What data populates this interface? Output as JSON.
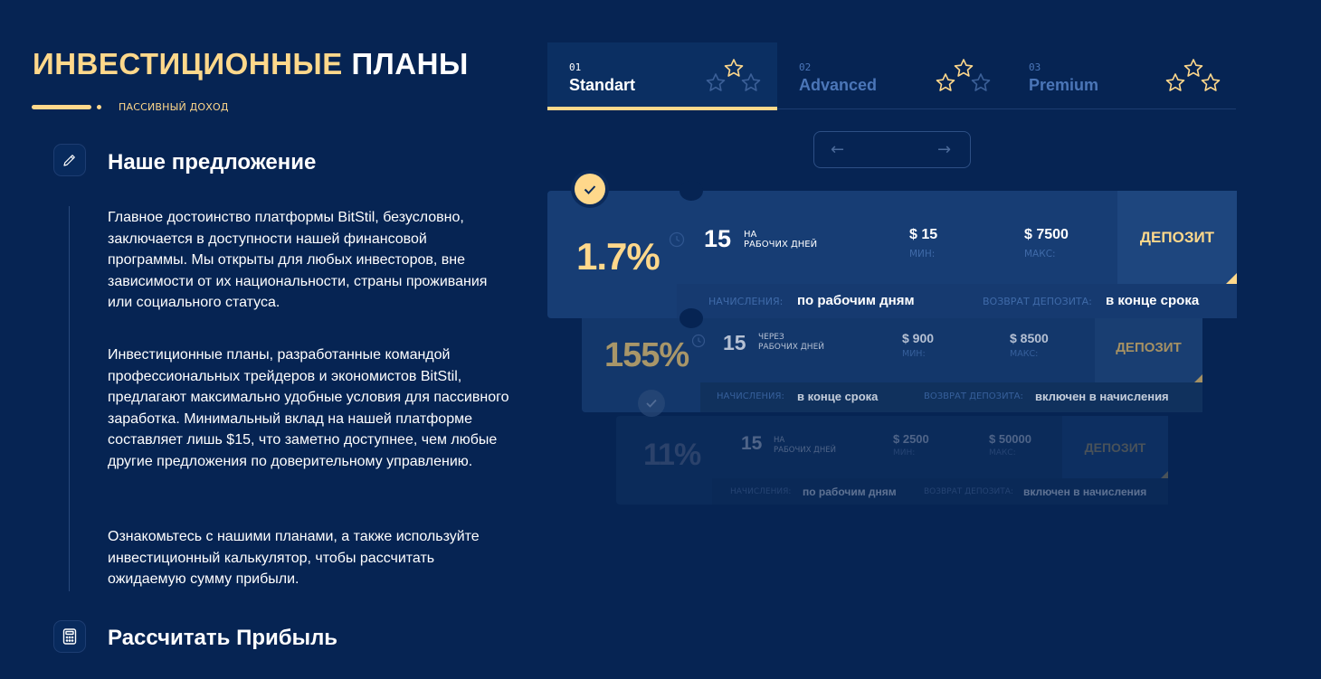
{
  "section": {
    "title_accent": "ИНВЕСТИЦИОННЫЕ",
    "title_rest": "ПЛАНЫ",
    "subtitle": "ПАССИВНЫЙ ДОХОД"
  },
  "offer": {
    "heading": "Наше предложение",
    "paragraphs": [
      "Главное достоинство платформы BitStil, безусловно, заключается в доступности нашей финансовой программы. Мы открыты для любых инвесторов, вне зависимости от их национальности, страны проживания или социального статуса.",
      "Инвестиционные планы, разработанные командой профессиональных трейдеров и экономистов BitStil, предлагают максимально удобные условия для пассивного заработка. Минимальный вклад на нашей платформе составляет лишь $15, что заметно доступнее, чем любые другие предложения по доверительному управлению.",
      "Ознакомьтесь с нашими планами, а также используйте инвестиционный калькулятор, чтобы рассчитать ожидаемую сумму прибыли."
    ]
  },
  "calculator": {
    "heading": "Рассчитать Прибыль"
  },
  "tabs": [
    {
      "num": "01",
      "label": "Standart",
      "active": true
    },
    {
      "num": "02",
      "label": "Advanced",
      "active": false
    },
    {
      "num": "03",
      "label": "Premium",
      "active": false
    }
  ],
  "nav": {
    "prev": "←",
    "next": "→"
  },
  "plans": [
    {
      "percent": "1.7%",
      "days": "15",
      "days_caption_1": "НА",
      "days_caption_2": "РАБОЧИХ ДНЕЙ",
      "min": "$ 15",
      "min_label": "МИН:",
      "max": "$ 7500",
      "max_label": "МАКС:",
      "deposit": "ДЕПОЗИТ",
      "accrual_label": "НАЧИСЛЕНИЯ:",
      "accrual_value": "по рабочим дням",
      "return_label": "ВОЗВРАТ ДЕПОЗИТА:",
      "return_value": "в конце срока"
    },
    {
      "percent": "155%",
      "days": "15",
      "days_caption_1": "ЧЕРЕЗ",
      "days_caption_2": "РАБОЧИХ ДНЕЙ",
      "min": "$ 900",
      "min_label": "МИН:",
      "max": "$ 8500",
      "max_label": "МАКС:",
      "deposit": "ДЕПОЗИТ",
      "accrual_label": "НАЧИСЛЕНИЯ:",
      "accrual_value": "в конце срока",
      "return_label": "ВОЗВРАТ ДЕПОЗИТА:",
      "return_value": "включен в начисления"
    },
    {
      "percent": "11%",
      "days": "15",
      "days_caption_1": "НА",
      "days_caption_2": "РАБОЧИХ ДНЕЙ",
      "min": "$ 2500",
      "min_label": "МИН:",
      "max": "$ 50000",
      "max_label": "МАКС:",
      "deposit": "ДЕПОЗИТ",
      "accrual_label": "НАЧИСЛЕНИЯ:",
      "accrual_value": "по рабочим дням",
      "return_label": "ВОЗВРАТ ДЕПОЗИТА:",
      "return_value": "включен в начисления"
    }
  ],
  "colors": {
    "background": "#062453",
    "accent": "#ffd88b",
    "card": "#173d74",
    "muted_blue": "#4b76b8"
  },
  "icons": {
    "offer": "pencil-icon",
    "calculator": "calculator-icon",
    "tab_rating": "star-icon",
    "selected": "check-icon",
    "duration": "clock-icon"
  }
}
